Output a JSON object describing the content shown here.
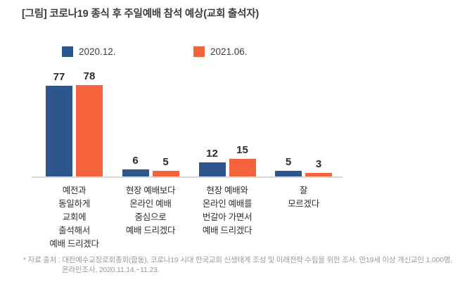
{
  "title": "[그림] 코로나19 종식 후 주일예배 참석 예상(교회 출석자)",
  "legend": {
    "items": [
      {
        "label": "2020.12.",
        "color": "#2e568c"
      },
      {
        "label": "2021.06.",
        "color": "#f5633c"
      }
    ]
  },
  "chart_data": {
    "type": "bar",
    "title": "[그림] 코로나19 종식 후 주일예배 참석 예상(교회 출석자)",
    "categories": [
      "예전과\n동일하게\n교회에\n출석해서\n예배 드리겠다",
      "현장 예배보다\n온라인 예배\n중심으로\n예배 드리겠다",
      "현장 예배와\n온라인 예배를\n번갈아 가면서\n예배 드리겠다",
      "잘\n모르겠다"
    ],
    "series": [
      {
        "name": "2020.12.",
        "color": "#2e568c",
        "values": [
          77,
          6,
          12,
          5
        ]
      },
      {
        "name": "2021.06.",
        "color": "#f5633c",
        "values": [
          78,
          5,
          15,
          3
        ]
      }
    ],
    "unit": "%",
    "ylim": [
      0,
      100
    ],
    "value_labels": true,
    "grid": false,
    "legend_position": "top"
  },
  "footnote": {
    "line1": "* 자료 출처 : 대한예수교장로회총회(합동), 코로나19 시대 한국교회 신생태계 조성 및 미래전략 수립을 위한 조사, 만19세 이상 개신교인 1,000명,",
    "line2": "온라인조사, 2020.11.14.~11.23."
  }
}
